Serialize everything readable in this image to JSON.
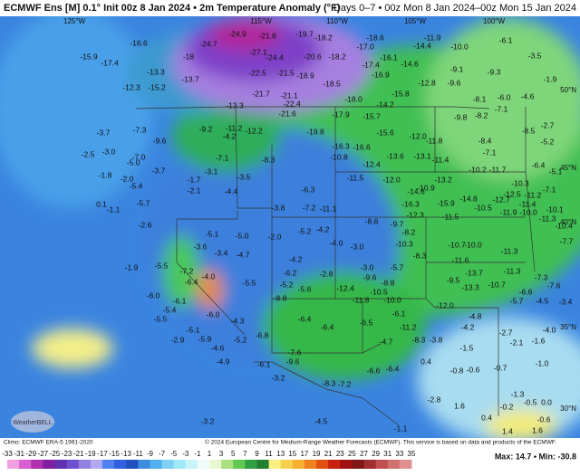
{
  "header": {
    "title": "ECMWF Ens [M] 0.1° Init 00z 8 Jan 2024 • 2m Temperature Anomaly (°F)",
    "period": "Days 0–7 • 00z Mon 8 Jan 2024–00z Mon 15 Jan 2024"
  },
  "geo_labels": [
    "125°W",
    "115°W",
    "110°W",
    "105°W",
    "100°W",
    "50°N",
    "45°N",
    "40°N",
    "35°N",
    "30°N"
  ],
  "map_labels": [
    [
      "-24.9",
      "-21.8",
      "-19.7",
      "-18.2",
      "-18.6",
      "-11.9",
      "-6.1"
    ],
    [
      "-16.6",
      "-24.7",
      "-17.0",
      "-14.4",
      "-10.0"
    ],
    [
      "-15.9",
      "-18",
      "-27.1",
      "-24.4",
      "-20.6",
      "-18.2",
      "-16.1",
      "-3.5"
    ],
    [
      "-17.4",
      "-17.4",
      "-14.6",
      "-9.1",
      "-9.3"
    ],
    [
      "-13.3",
      "-22.5",
      "-21.5",
      "-18.9",
      "-16.9",
      "-1.9"
    ],
    [
      "-12.3",
      "-15.2",
      "-13.7",
      "-18.5",
      "-12.8",
      "-9.6",
      "-4.6"
    ],
    [
      "-21.7",
      "-21.1",
      "-15.8",
      "-8.1",
      "-6.0"
    ],
    [
      "-22.4",
      "-18.0",
      "-14.2",
      "-7.1"
    ],
    [
      "-13.3",
      "-21.6",
      "-17.9",
      "-15.7",
      "-9.8",
      "-8.2"
    ],
    [
      "-7.3",
      "-9.2",
      "-11.2",
      "-12.2",
      "-19.8",
      "-15.6",
      "-12.0",
      "-8.5",
      "-2.7"
    ],
    [
      "-3.7",
      "-9.6",
      "-4.2",
      "-16.3",
      "-16.6",
      "-11.8",
      "-8.4",
      "-5.2"
    ],
    [
      "-2.5",
      "-3.0",
      "-7.0",
      "-10.8",
      "-13.6",
      "-13.1",
      "-11.4",
      "-7.1"
    ],
    [
      "-5.0",
      "-7.1",
      "-8.3",
      "-12.4",
      "-10.2",
      "-11.7",
      "-6.4",
      "-5.1"
    ],
    [
      "-3.7",
      "-3.1",
      "-11.5",
      "-12.0",
      "-13.2",
      "-10.9"
    ],
    [
      "-1.8",
      "-2.0",
      "-5.4",
      "-1.7",
      "-3.5",
      "-7.1",
      "-10.3",
      "-12.5",
      "-11.2"
    ],
    [
      "-2.1",
      "-4.4",
      "-6.3",
      "-14.6",
      "-14.8"
    ],
    [
      "0.1",
      "-5.7",
      "-3.8",
      "-7.2",
      "-11.1",
      "-15.9",
      "-12.7",
      "-11.4"
    ],
    [
      "-1.1",
      "-8.6",
      "-16.3",
      "-12.3",
      "-11.5",
      "-10.5",
      "-11.9",
      "-10.0",
      "-10.1"
    ],
    [
      "-2.6",
      "-5.1",
      "-5.0",
      "-2.0",
      "-5.2",
      "-4.2",
      "-9.7",
      "-11.3",
      "-10.4"
    ],
    [
      "-3.6",
      "-4.0",
      "-3.0",
      "-10.3",
      "-8.2",
      "-10.7",
      "-10.0"
    ],
    [
      "-1.9",
      "-5.5",
      "-3.4",
      "-4.7",
      "-4.2",
      "-8.3",
      "-11.6",
      "-11.3",
      "-7.7"
    ],
    [
      "-7.2",
      "-4.0",
      "-6.2",
      "-2.8",
      "-3.0",
      "-5.7",
      "-13.7",
      "-11.3",
      "-7.3"
    ],
    [
      "-6.4",
      "-5.5",
      "-5.2",
      "-5.6",
      "-12.4",
      "-9.6",
      "-8.8",
      "-9.5",
      "-10.7",
      "-7.6"
    ],
    [
      "-6.0",
      "-6.1",
      "-8.8",
      "-10.5",
      "-13.3",
      "-6.6"
    ],
    [
      "-5.4",
      "-11.8",
      "-10.0",
      "-12.0",
      "-5.7",
      "-4.5",
      "-3.4"
    ],
    [
      "-5.5",
      "-6.0",
      "-4.3",
      "-6.4",
      "-6.4",
      "-6.5",
      "-11.2",
      "-6.1",
      "-4.8",
      "-4.2"
    ],
    [
      "-5.1",
      "-2.9",
      "-5.2",
      "-6.8",
      "-8.3",
      "-2.7",
      "-4.0"
    ],
    [
      "-5.9",
      "-4.6",
      "-7.6",
      "-4.7",
      "-3.8",
      "-1.5",
      "-2.1",
      "-1.6"
    ],
    [
      "-4.9",
      "-6.1",
      "-9.6",
      "0.4",
      "-0.8",
      "-0.6",
      "-0.7",
      "-1.0"
    ],
    [
      "-6.6",
      "-6.4",
      "-3.2",
      "-8.3",
      "-7.2"
    ],
    [
      "-1.3",
      "-2.8",
      "-0.5",
      "0.0",
      "-0.2",
      "-0.6"
    ],
    [
      "1.6",
      "-1.1",
      "-4.5",
      "-3.2",
      "1.4",
      "1.6",
      "0.4"
    ]
  ],
  "colorbar_ticks": [
    -33,
    -31,
    -29,
    -27,
    -25,
    -23,
    -21,
    -19,
    -17,
    -15,
    -13,
    -11,
    -9,
    -7,
    -5,
    -3,
    -1,
    1,
    3,
    5,
    7,
    9,
    11,
    13,
    15,
    17,
    19,
    21,
    23,
    25,
    27,
    29,
    31,
    33,
    35
  ],
  "footer": {
    "climo": "Climo: ECMWF ERA-5 1991-2020",
    "copyright": "© 2024 European Centre for Medium-Range Weather Forecasts (ECMWF). This service is based on data and products of the ECMWF.",
    "max_min": "Max: 14.7 • Min: -30.8",
    "logo": "WeatherBELL"
  }
}
